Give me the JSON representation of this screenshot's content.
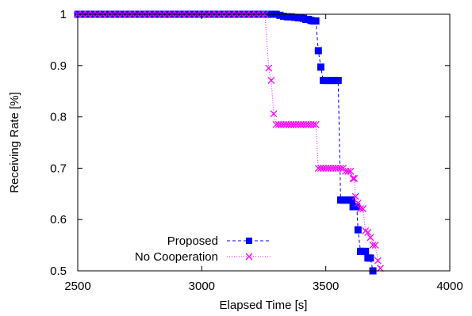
{
  "chart_data": {
    "type": "line",
    "title": "",
    "xlabel": "Elapsed Time [s]",
    "ylabel": "Receiving Rate [%]",
    "xlim": [
      2500,
      4000
    ],
    "ylim": [
      0.5,
      1.0
    ],
    "xticks": [
      2500,
      3000,
      3500,
      4000
    ],
    "yticks": [
      0.5,
      0.6,
      0.7,
      0.8,
      0.9,
      1.0
    ],
    "xtick_labels": [
      "2500",
      "3000",
      "3500",
      "4000"
    ],
    "ytick_labels": [
      "0.5",
      "0.6",
      "0.7",
      "0.8",
      "0.9",
      "1"
    ],
    "grid": false,
    "legend_position": "bottom-left",
    "series": [
      {
        "name": "Proposed",
        "color": "#0000ff",
        "marker": "square",
        "line_style": "dashed",
        "x": [
          2500,
          2520,
          2540,
          2560,
          2580,
          2600,
          2620,
          2640,
          2660,
          2680,
          2700,
          2720,
          2740,
          2760,
          2780,
          2800,
          2820,
          2840,
          2860,
          2880,
          2900,
          2920,
          2940,
          2960,
          2980,
          3000,
          3020,
          3040,
          3060,
          3080,
          3100,
          3120,
          3140,
          3160,
          3180,
          3200,
          3220,
          3240,
          3260,
          3280,
          3300,
          3315,
          3330,
          3345,
          3360,
          3375,
          3390,
          3400,
          3410,
          3420,
          3430,
          3440,
          3450,
          3460,
          3470,
          3480,
          3490,
          3500,
          3510,
          3520,
          3530,
          3540,
          3550,
          3560,
          3565,
          3570,
          3575,
          3580,
          3585,
          3590,
          3595,
          3600,
          3605,
          3610,
          3615,
          3620,
          3625,
          3630,
          3640,
          3650,
          3660,
          3670,
          3680,
          3690
        ],
        "y": [
          1.0,
          1.0,
          1.0,
          1.0,
          1.0,
          1.0,
          1.0,
          1.0,
          1.0,
          1.0,
          1.0,
          1.0,
          1.0,
          1.0,
          1.0,
          1.0,
          1.0,
          1.0,
          1.0,
          1.0,
          1.0,
          1.0,
          1.0,
          1.0,
          1.0,
          1.0,
          1.0,
          1.0,
          1.0,
          1.0,
          1.0,
          1.0,
          1.0,
          1.0,
          1.0,
          1.0,
          1.0,
          1.0,
          1.0,
          1.0,
          1.0,
          0.998,
          0.996,
          0.995,
          0.995,
          0.994,
          0.993,
          0.993,
          0.992,
          0.99,
          0.99,
          0.988,
          0.987,
          0.987,
          0.929,
          0.897,
          0.871,
          0.871,
          0.871,
          0.871,
          0.871,
          0.871,
          0.871,
          0.638,
          0.638,
          0.638,
          0.638,
          0.638,
          0.638,
          0.638,
          0.638,
          0.638,
          0.638,
          0.625,
          0.625,
          0.625,
          0.625,
          0.58,
          0.538,
          0.538,
          0.538,
          0.525,
          0.525,
          0.5
        ]
      },
      {
        "name": "No Cooperation",
        "color": "#ff00ff",
        "marker": "cross",
        "line_style": "dotted",
        "x": [
          2500,
          2520,
          2540,
          2560,
          2580,
          2600,
          2620,
          2640,
          2660,
          2680,
          2700,
          2720,
          2740,
          2760,
          2780,
          2800,
          2820,
          2840,
          2860,
          2880,
          2900,
          2920,
          2940,
          2960,
          2980,
          3000,
          3020,
          3040,
          3060,
          3080,
          3100,
          3120,
          3140,
          3160,
          3180,
          3200,
          3220,
          3240,
          3255,
          3270,
          3280,
          3290,
          3300,
          3310,
          3320,
          3330,
          3340,
          3350,
          3360,
          3370,
          3380,
          3390,
          3400,
          3410,
          3420,
          3430,
          3440,
          3450,
          3460,
          3470,
          3480,
          3490,
          3500,
          3510,
          3520,
          3530,
          3540,
          3550,
          3560,
          3570,
          3580,
          3590,
          3600,
          3610,
          3615,
          3620,
          3630,
          3640,
          3650,
          3660,
          3670,
          3680,
          3690,
          3700,
          3710,
          3720
        ],
        "y": [
          1.0,
          1.0,
          1.0,
          1.0,
          1.0,
          1.0,
          1.0,
          1.0,
          1.0,
          1.0,
          1.0,
          1.0,
          1.0,
          1.0,
          1.0,
          1.0,
          1.0,
          1.0,
          1.0,
          1.0,
          1.0,
          1.0,
          1.0,
          1.0,
          1.0,
          1.0,
          1.0,
          1.0,
          1.0,
          1.0,
          1.0,
          1.0,
          1.0,
          1.0,
          1.0,
          1.0,
          1.0,
          1.0,
          1.0,
          0.895,
          0.871,
          0.806,
          0.785,
          0.785,
          0.785,
          0.785,
          0.785,
          0.785,
          0.785,
          0.785,
          0.785,
          0.785,
          0.785,
          0.785,
          0.785,
          0.785,
          0.785,
          0.785,
          0.785,
          0.7,
          0.7,
          0.7,
          0.7,
          0.7,
          0.7,
          0.7,
          0.7,
          0.7,
          0.7,
          0.7,
          0.694,
          0.694,
          0.694,
          0.68,
          0.68,
          0.645,
          0.632,
          0.621,
          0.621,
          0.578,
          0.575,
          0.565,
          0.55,
          0.55,
          0.52,
          0.505
        ]
      }
    ]
  }
}
